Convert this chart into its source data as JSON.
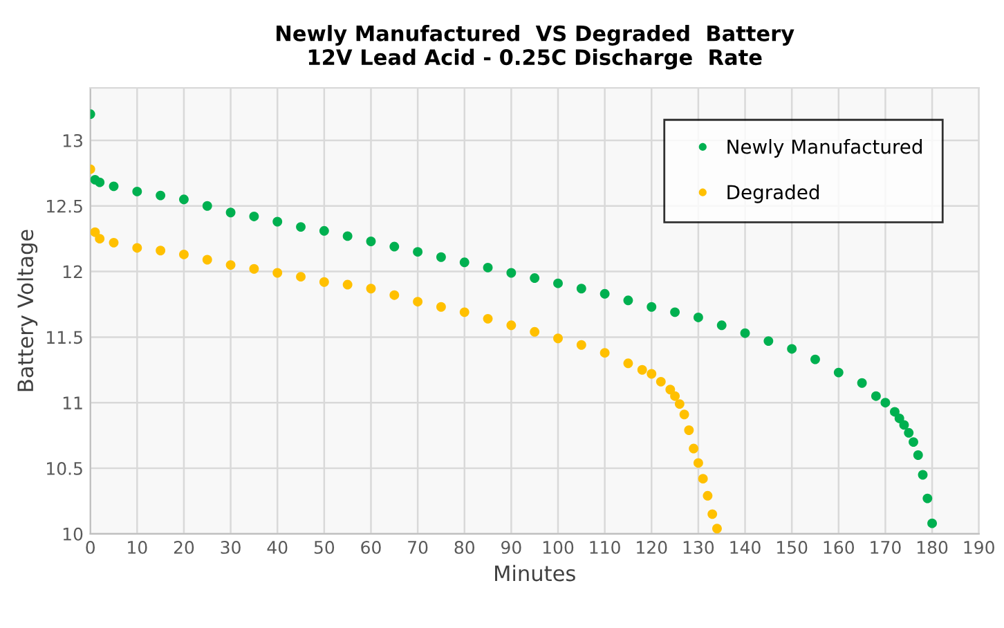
{
  "chart_data": {
    "type": "scatter",
    "title": "Newly Manufactured  VS Degraded  Battery\n12V Lead Acid - 0.25C Discharge  Rate",
    "xlabel": "Minutes",
    "ylabel": "Battery Voltage",
    "xlim": [
      0,
      190
    ],
    "xticks": [
      0,
      10,
      20,
      30,
      40,
      50,
      60,
      70,
      80,
      90,
      100,
      110,
      120,
      130,
      140,
      150,
      160,
      170,
      180,
      190
    ],
    "ylim": [
      10,
      13.4
    ],
    "yticks": [
      10,
      {
        "value": 10.5,
        "label": "10.5"
      },
      11,
      {
        "value": 11.5,
        "label": "11.5"
      },
      12,
      {
        "value": 12.5,
        "label": "12.5"
      },
      13
    ],
    "grid": true,
    "legend": "top right",
    "marker": "circle",
    "series": [
      {
        "name": "Newly Manufactured",
        "color": "#00b050",
        "x": [
          0,
          1,
          2,
          5,
          10,
          15,
          20,
          25,
          30,
          35,
          40,
          45,
          50,
          55,
          60,
          65,
          70,
          75,
          80,
          85,
          90,
          95,
          100,
          105,
          110,
          115,
          120,
          125,
          130,
          135,
          140,
          145,
          150,
          155,
          160,
          165,
          168,
          170,
          172,
          173,
          174,
          175,
          176,
          177,
          178,
          179,
          180
        ],
        "values": [
          13.2,
          12.7,
          12.68,
          12.65,
          12.61,
          12.58,
          12.55,
          12.5,
          12.45,
          12.42,
          12.38,
          12.34,
          12.31,
          12.27,
          12.23,
          12.19,
          12.15,
          12.11,
          12.07,
          12.03,
          11.99,
          11.95,
          11.91,
          11.87,
          11.83,
          11.78,
          11.73,
          11.69,
          11.65,
          11.59,
          11.53,
          11.47,
          11.41,
          11.33,
          11.23,
          11.15,
          11.05,
          11.0,
          10.93,
          10.88,
          10.83,
          10.77,
          10.7,
          10.6,
          10.45,
          10.27,
          10.08
        ]
      },
      {
        "name": "Degraded",
        "color": "#ffc000",
        "x": [
          0,
          1,
          2,
          5,
          10,
          15,
          20,
          25,
          30,
          35,
          40,
          45,
          50,
          55,
          60,
          65,
          70,
          75,
          80,
          85,
          90,
          95,
          100,
          105,
          110,
          115,
          118,
          120,
          122,
          124,
          125,
          126,
          127,
          128,
          129,
          130,
          131,
          132,
          133,
          134
        ],
        "values": [
          12.78,
          12.3,
          12.25,
          12.22,
          12.18,
          12.16,
          12.13,
          12.09,
          12.05,
          12.02,
          11.99,
          11.96,
          11.92,
          11.9,
          11.87,
          11.82,
          11.77,
          11.73,
          11.69,
          11.64,
          11.59,
          11.54,
          11.49,
          11.44,
          11.38,
          11.3,
          11.25,
          11.22,
          11.16,
          11.1,
          11.05,
          10.99,
          10.91,
          10.79,
          10.65,
          10.54,
          10.42,
          10.29,
          10.15,
          10.04
        ]
      }
    ]
  }
}
